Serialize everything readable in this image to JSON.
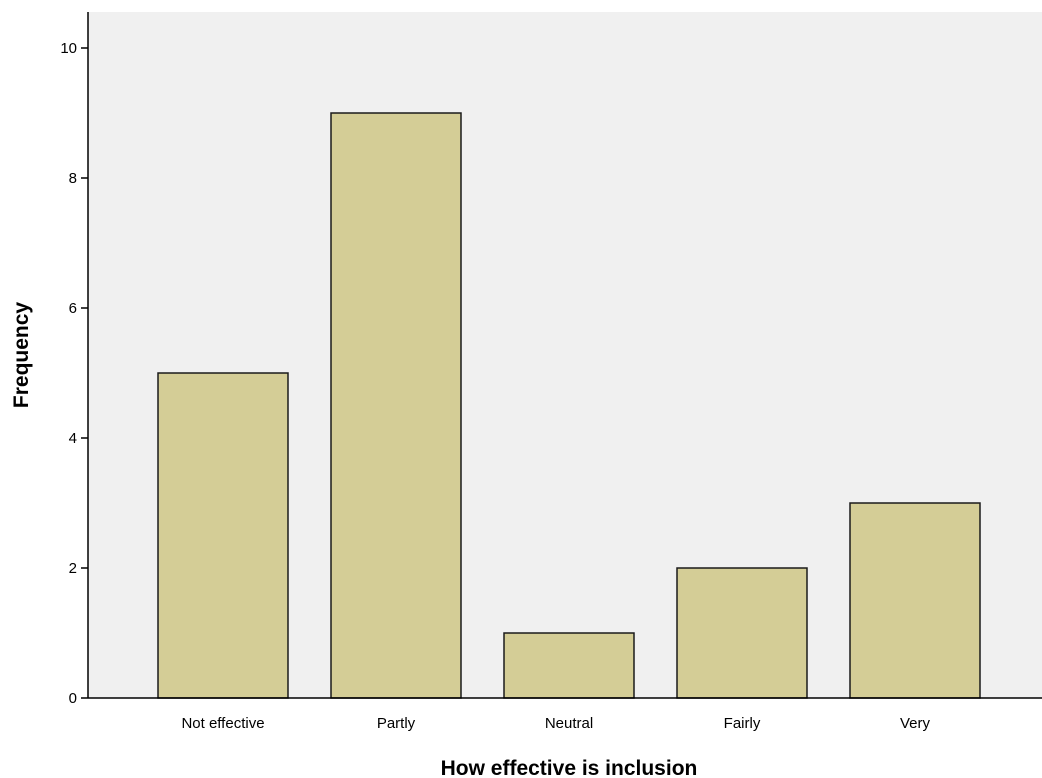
{
  "chart_data": {
    "type": "bar",
    "categories": [
      "Not effective",
      "Partly",
      "Neutral",
      "Fairly",
      "Very"
    ],
    "values": [
      5,
      9,
      1,
      2,
      3
    ],
    "xlabel": "How effective is inclusion",
    "ylabel": "Frequency",
    "ylim": [
      0,
      10
    ],
    "yticks": [
      0,
      2,
      4,
      6,
      8,
      10
    ],
    "grid": false,
    "legend": "none",
    "colors": {
      "bar_fill": "#d4cd96",
      "bar_stroke": "#1a1a1a",
      "plot_background": "#f0f0f0",
      "axis": "#000000"
    }
  }
}
